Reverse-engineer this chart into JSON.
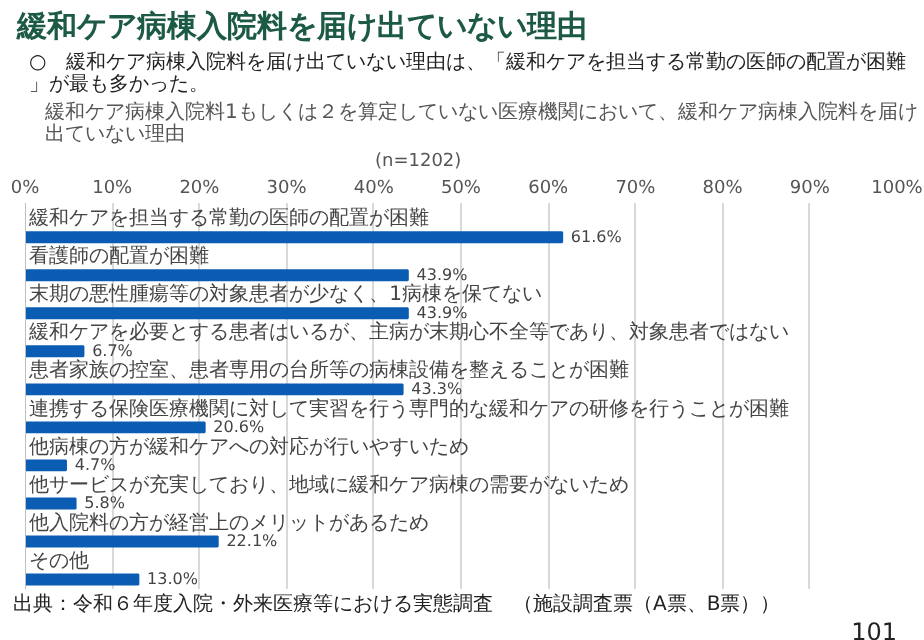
{
  "chart_data": {
    "type": "bar",
    "orientation": "horizontal",
    "title": "緩和ケア病棟入院料を届け出ていない理由",
    "subtitle": "緩和ケア病棟入院料1もしくは２を算定していない医療機関において、緩和ケア病棟入院料を届け出ていない理由",
    "annotations": [
      "○　緩和ケア病棟入院料を届け出ていない理由は、「緩和ケアを担当する常勤の医師の配置が困難」が最も多かった。",
      "(n=1202)",
      "出典：令和６年度入院・外来医療等における実態調査　（施設調査票（A票、B票））",
      "101"
    ],
    "categories": [
      "緩和ケアを担当する常勤の医師の配置が困難",
      "看護師の配置が困難",
      "末期の悪性腫瘍等の対象患者が少なく、1病棟を保てない",
      "緩和ケアを必要とする患者はいるが、主病が末期心不全等であり、対象患者ではない",
      "患者家族の控室、患者専用の台所等の病棟設備を整えることが困難",
      "連携する保険医療機関に対して実習を行う専門的な緩和ケアの研修を行うことが困難",
      "他病棟の方が緩和ケアへの対応が行いやすいため",
      "他サービスが充実しており、地域に緩和ケア病棟の需要がないため",
      "他入院料の方が経営上のメリットがあるため",
      "その他"
    ],
    "values": [
      61.6,
      43.9,
      43.9,
      6.7,
      43.3,
      20.6,
      4.7,
      5.8,
      22.1,
      13.0
    ],
    "value_labels": [
      "61.6%",
      "43.9%",
      "43.9%",
      "6.7%",
      "43.3%",
      "20.6%",
      "4.7%",
      "5.8%",
      "22.1%",
      "13.0%"
    ],
    "color": "#0b5cb3",
    "xlim": [
      0,
      100
    ],
    "xticks": [
      {
        "value": 0,
        "label": "0%"
      },
      {
        "value": 10,
        "label": "10%"
      },
      {
        "value": 20,
        "label": "20%"
      },
      {
        "value": 30,
        "label": "30%"
      },
      {
        "value": 40,
        "label": "40%"
      },
      {
        "value": 50,
        "label": "50%"
      },
      {
        "value": 60,
        "label": "60%"
      },
      {
        "value": 70,
        "label": "70%"
      },
      {
        "value": 80,
        "label": "80%"
      },
      {
        "value": 90,
        "label": "90%"
      },
      {
        "value": 100,
        "label": "100%"
      }
    ],
    "grid": "x",
    "tick_labels": "x"
  }
}
